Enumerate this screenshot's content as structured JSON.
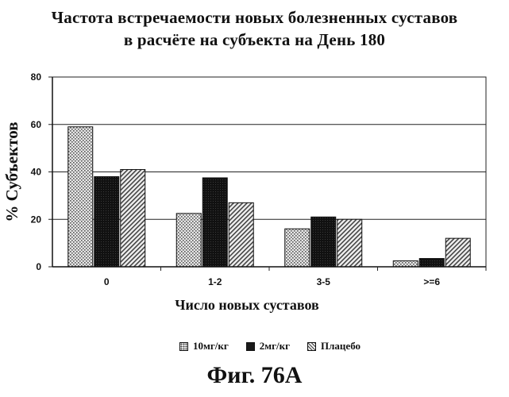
{
  "chart_data": {
    "type": "bar",
    "title_lines": [
      "Частота встречаемости новых болезненных суставов",
      "в расчёте на субъекта на День 180"
    ],
    "xlabel": "Число новых суставов",
    "ylabel": "% Субъектов",
    "ylim": [
      0,
      80
    ],
    "yticks": [
      0,
      20,
      40,
      60,
      80
    ],
    "grid": true,
    "legend_position": "bottom",
    "categories": [
      "0",
      "1-2",
      "3-5",
      ">=6"
    ],
    "series": [
      {
        "name": "10мг/кг",
        "values": [
          59,
          22.5,
          16,
          2.5
        ],
        "color": "#bdbdbd",
        "pattern": "dots"
      },
      {
        "name": "2мг/кг",
        "values": [
          38,
          37.5,
          21,
          3.5
        ],
        "color": "#1a1a1a",
        "pattern": "solid"
      },
      {
        "name": "Плацебо",
        "values": [
          41,
          27,
          20,
          12
        ],
        "color": "#cfcfcf",
        "pattern": "diagonal"
      }
    ]
  },
  "figure_label": "Фиг. 76А"
}
